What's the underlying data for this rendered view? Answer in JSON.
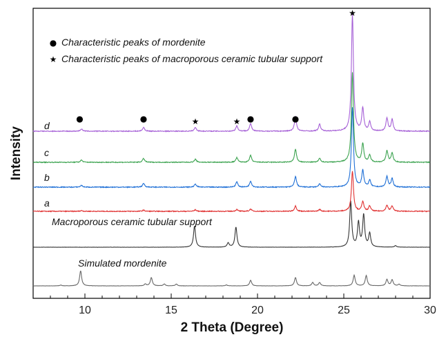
{
  "chart_data": {
    "type": "line",
    "title": "",
    "xlabel": "2 Theta (Degree)",
    "ylabel": "Intensity",
    "xlim": [
      7,
      30
    ],
    "xticks": [
      10,
      15,
      20,
      25
    ],
    "y_ticks_shown": false,
    "y_units": "arbitrary (stacked offsets)",
    "legend": {
      "placement": "top-left",
      "items": [
        {
          "symbol": "●",
          "text": "Characteristic peaks of mordenite"
        },
        {
          "symbol": "★",
          "text": "Characteristic peaks of macroporous ceramic tubular support"
        }
      ]
    },
    "peak_markers": [
      {
        "x": 9.7,
        "symbol": "●"
      },
      {
        "x": 13.4,
        "symbol": "●"
      },
      {
        "x": 16.4,
        "symbol": "★"
      },
      {
        "x": 18.8,
        "symbol": "★"
      },
      {
        "x": 19.6,
        "symbol": "●"
      },
      {
        "x": 22.2,
        "symbol": "●"
      },
      {
        "x": 25.5,
        "symbol": "★"
      }
    ],
    "series": [
      {
        "name": "Simulated mordenite",
        "color": "#666666",
        "baseline": 0.0,
        "peaks": [
          [
            8.6,
            0.05
          ],
          [
            9.75,
            1.0
          ],
          [
            13.5,
            0.12
          ],
          [
            13.85,
            0.55
          ],
          [
            14.6,
            0.12
          ],
          [
            15.3,
            0.12
          ],
          [
            18.2,
            0.06
          ],
          [
            19.6,
            0.37
          ],
          [
            22.2,
            0.55
          ],
          [
            23.2,
            0.22
          ],
          [
            23.6,
            0.22
          ],
          [
            25.6,
            0.7
          ],
          [
            26.3,
            0.68
          ],
          [
            27.5,
            0.42
          ],
          [
            27.8,
            0.4
          ],
          [
            28.2,
            0.1
          ]
        ]
      },
      {
        "name": "Macroporous ceramic tubular support",
        "color": "#333333",
        "baseline": 0.0,
        "peaks": [
          [
            16.35,
            1.4
          ],
          [
            18.3,
            0.28
          ],
          [
            18.75,
            1.33
          ],
          [
            25.4,
            3.0
          ],
          [
            25.85,
            1.6
          ],
          [
            26.15,
            2.1
          ],
          [
            26.5,
            0.9
          ],
          [
            28.0,
            0.1
          ]
        ]
      },
      {
        "name": "a",
        "color": "#e03030",
        "baseline": 0.0,
        "peaks": [
          [
            9.8,
            0.05
          ],
          [
            13.4,
            0.08
          ],
          [
            16.4,
            0.1
          ],
          [
            18.8,
            0.12
          ],
          [
            19.6,
            0.15
          ],
          [
            22.2,
            0.35
          ],
          [
            23.6,
            0.12
          ],
          [
            25.5,
            2.65
          ],
          [
            26.1,
            0.65
          ],
          [
            26.5,
            0.35
          ],
          [
            27.5,
            0.4
          ],
          [
            27.8,
            0.35
          ]
        ]
      },
      {
        "name": "b",
        "color": "#1e6fd6",
        "baseline": 0.0,
        "peaks": [
          [
            9.8,
            0.12
          ],
          [
            13.4,
            0.25
          ],
          [
            16.4,
            0.2
          ],
          [
            18.8,
            0.35
          ],
          [
            19.6,
            0.4
          ],
          [
            22.2,
            0.7
          ],
          [
            23.6,
            0.2
          ],
          [
            25.5,
            5.25
          ],
          [
            26.1,
            1.1
          ],
          [
            26.5,
            0.45
          ],
          [
            27.5,
            0.7
          ],
          [
            27.8,
            0.55
          ]
        ]
      },
      {
        "name": "c",
        "color": "#3aa24e",
        "baseline": 0.0,
        "peaks": [
          [
            9.8,
            0.15
          ],
          [
            13.4,
            0.25
          ],
          [
            16.4,
            0.2
          ],
          [
            18.8,
            0.3
          ],
          [
            19.6,
            0.45
          ],
          [
            22.2,
            0.85
          ],
          [
            23.6,
            0.25
          ],
          [
            25.5,
            5.9
          ],
          [
            26.1,
            1.2
          ],
          [
            26.5,
            0.45
          ],
          [
            27.5,
            0.75
          ],
          [
            27.8,
            0.6
          ]
        ]
      },
      {
        "name": "d",
        "color": "#a55fd6",
        "baseline": 0.0,
        "peaks": [
          [
            9.8,
            0.15
          ],
          [
            13.4,
            0.25
          ],
          [
            16.4,
            0.25
          ],
          [
            18.8,
            0.35
          ],
          [
            19.6,
            0.5
          ],
          [
            22.2,
            0.95
          ],
          [
            23.6,
            0.45
          ],
          [
            25.5,
            7.7
          ],
          [
            26.1,
            1.5
          ],
          [
            26.5,
            0.6
          ],
          [
            27.5,
            0.85
          ],
          [
            27.8,
            0.75
          ]
        ]
      }
    ]
  }
}
